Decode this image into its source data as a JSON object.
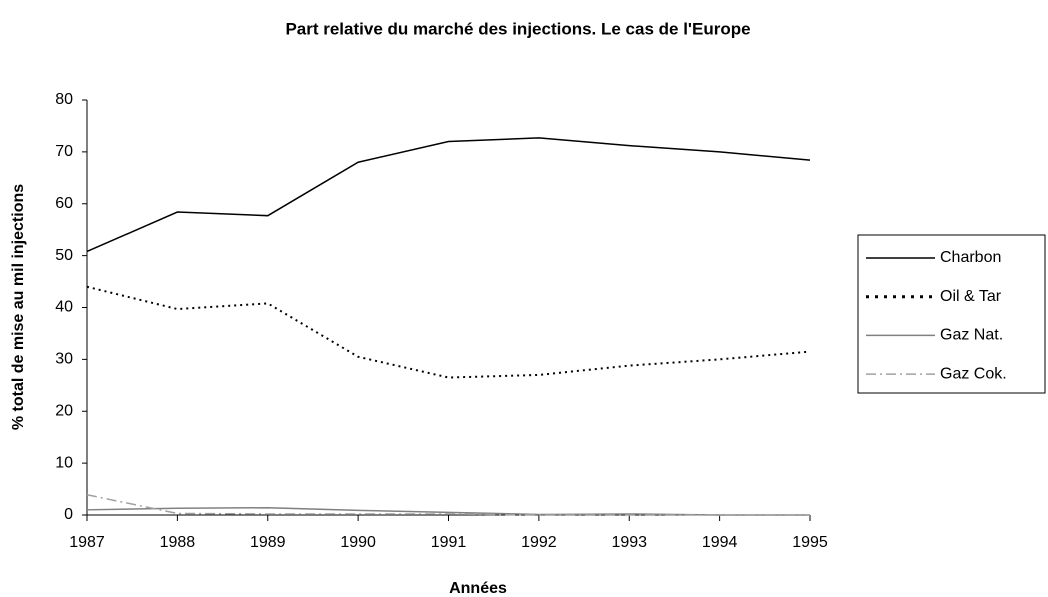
{
  "chart_data": {
    "type": "line",
    "title": "Part relative du marché des injections. Le cas de l'Europe",
    "x_label": "Années",
    "y_label": "% total de mise au mil  injections",
    "x": [
      1987,
      1988,
      1989,
      1990,
      1991,
      1992,
      1993,
      1994,
      1995
    ],
    "series": [
      {
        "name": "Charbon",
        "color": "#000000",
        "dash": "solid",
        "values": [
          50.8,
          58.4,
          57.7,
          68,
          72,
          72.7,
          71.2,
          70,
          68.4
        ]
      },
      {
        "name": "Oil & Tar",
        "color": "#000000",
        "dash": "dotted",
        "values": [
          44,
          39.7,
          40.8,
          30.5,
          26.5,
          27,
          28.8,
          30,
          31.5
        ]
      },
      {
        "name": "Gaz Nat.",
        "color": "#808080",
        "dash": "solid",
        "values": [
          1,
          1.3,
          1.4,
          0.9,
          0.5,
          0.1,
          0.2,
          0,
          0
        ]
      },
      {
        "name": "Gaz Cok.",
        "color": "#a0a0a0",
        "dash": "dashdot",
        "values": [
          3.9,
          0.3,
          0.2,
          0.2,
          0.2,
          0,
          0,
          0,
          0
        ]
      }
    ],
    "xlim": [
      1987,
      1995
    ],
    "xticks": [
      1987,
      1988,
      1989,
      1990,
      1991,
      1992,
      1993,
      1994,
      1995
    ],
    "ylim": [
      0,
      80
    ],
    "yticks": [
      0,
      10,
      20,
      30,
      40,
      50,
      60,
      70,
      80
    ],
    "legend": "right"
  }
}
